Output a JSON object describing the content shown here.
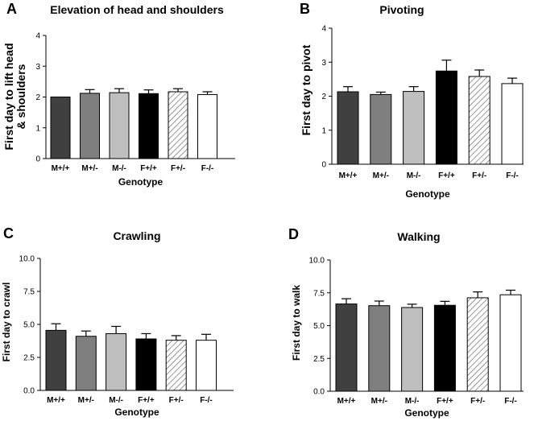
{
  "xlabel": "Genotype",
  "categories": [
    "M+/+",
    "M+/-",
    "M-/-",
    "F+/+",
    "F+/-",
    "F-/-"
  ],
  "colors": {
    "bar_fills": [
      "#404040",
      "#7f7f7f",
      "#bfbfbf",
      "#000000",
      "hatch",
      "#ffffff"
    ],
    "stroke": "#000000"
  },
  "chart_data": [
    {
      "type": "bar",
      "panel": "A",
      "title": "Elevation of  head and shoulders",
      "ylabel_lines": [
        "First day to lift head",
        "& shoulders"
      ],
      "xlabel": "Genotype",
      "categories": [
        "M+/+",
        "M+/-",
        "M-/-",
        "F+/+",
        "F+/-",
        "F-/-"
      ],
      "values": [
        2.0,
        2.12,
        2.14,
        2.11,
        2.17,
        2.08
      ],
      "errors": [
        0.0,
        0.12,
        0.13,
        0.12,
        0.1,
        0.09
      ],
      "ylim": [
        0,
        4
      ],
      "yticks": [
        0,
        1,
        2,
        3,
        4
      ],
      "ytick_labels": [
        "0",
        "1",
        "2",
        "3",
        "4"
      ]
    },
    {
      "type": "bar",
      "panel": "B",
      "title": "Pivoting",
      "ylabel_lines": [
        "First day to pivot"
      ],
      "xlabel": "Genotype",
      "categories": [
        "M+/+",
        "M+/-",
        "M-/-",
        "F+/+",
        "F+/-",
        "F-/-"
      ],
      "values": [
        2.13,
        2.05,
        2.14,
        2.74,
        2.58,
        2.37
      ],
      "errors": [
        0.15,
        0.07,
        0.14,
        0.32,
        0.19,
        0.16
      ],
      "ylim": [
        0,
        4
      ],
      "yticks": [
        0,
        1,
        2,
        3,
        4
      ],
      "ytick_labels": [
        "0",
        "1",
        "2",
        "3",
        "4"
      ]
    },
    {
      "type": "bar",
      "panel": "C",
      "title": "Crawling",
      "ylabel_lines": [
        "First day to crawl"
      ],
      "xlabel": "Genotype",
      "categories": [
        "M+/+",
        "M+/-",
        "M-/-",
        "F+/+",
        "F+/-",
        "F-/-"
      ],
      "values": [
        4.55,
        4.1,
        4.3,
        3.9,
        3.8,
        3.8
      ],
      "errors": [
        0.5,
        0.4,
        0.55,
        0.4,
        0.35,
        0.45
      ],
      "ylim": [
        0,
        10
      ],
      "yticks": [
        0,
        2.5,
        5,
        7.5,
        10
      ],
      "ytick_labels": [
        "0.0",
        "2.5",
        "5.0",
        "7.5",
        "10.0"
      ]
    },
    {
      "type": "bar",
      "panel": "D",
      "title": "Walking",
      "ylabel_lines": [
        "First day to walk"
      ],
      "xlabel": "Genotype",
      "categories": [
        "M+/+",
        "M+/-",
        "M-/-",
        "F+/+",
        "F+/-",
        "F-/-"
      ],
      "values": [
        6.65,
        6.52,
        6.38,
        6.55,
        7.12,
        7.35
      ],
      "errors": [
        0.4,
        0.35,
        0.25,
        0.3,
        0.45,
        0.35
      ],
      "ylim": [
        0,
        10
      ],
      "yticks": [
        0,
        2.5,
        5,
        7.5,
        10
      ],
      "ytick_labels": [
        "0.0",
        "2.5",
        "5.0",
        "7.5",
        "10.0"
      ]
    }
  ]
}
